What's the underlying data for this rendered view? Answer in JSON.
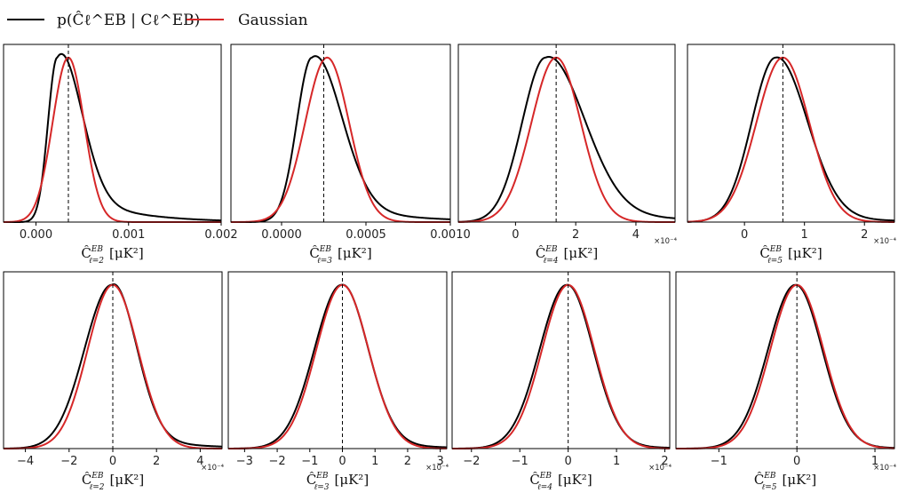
{
  "legend": [
    {
      "label": "p(Ĉℓ^EB | Cℓ^EB)",
      "color": "#000000"
    },
    {
      "label": "Gaussian",
      "color": "#d62728"
    }
  ],
  "chart_data": [
    {
      "type": "line",
      "row": "top",
      "title": "",
      "xlabel_prefix": "Ĉ",
      "xlabel_sup": "EB",
      "xlabel_sub": "ℓ=2",
      "xlabel_unit": "[μK²]",
      "multiplier": "",
      "xlim": [
        -0.00035,
        0.002
      ],
      "ticks": [
        0,
        0.001,
        0.002
      ],
      "tick_labels": [
        "0.000",
        "0.001",
        "0.002"
      ],
      "vline": 0.00035,
      "series": [
        {
          "name": "p(Ĉℓ^EB | Cℓ^EB)",
          "color": "#000000",
          "form": "skew",
          "mode": 0.00023,
          "left_width": 0.0001,
          "right_width": 0.00025,
          "tail": 0.25
        },
        {
          "name": "Gaussian",
          "color": "#d62728",
          "form": "gauss",
          "mean": 0.00035,
          "sd": 0.00017
        }
      ]
    },
    {
      "type": "line",
      "row": "top",
      "title": "",
      "xlabel_prefix": "Ĉ",
      "xlabel_sup": "EB",
      "xlabel_sub": "ℓ=3",
      "xlabel_unit": "[μK²]",
      "multiplier": "",
      "xlim": [
        -0.0003,
        0.001
      ],
      "ticks": [
        0,
        0.0005,
        0.001
      ],
      "tick_labels": [
        "0.0000",
        "0.0005",
        "0.0010"
      ],
      "vline": 0.00025,
      "series": [
        {
          "name": "p(Ĉℓ^EB | Cℓ^EB)",
          "color": "#000000",
          "form": "skew",
          "mode": 0.00018,
          "left_width": 9e-05,
          "right_width": 0.00017,
          "tail": 0.15
        },
        {
          "name": "Gaussian",
          "color": "#d62728",
          "form": "gauss",
          "mean": 0.00027,
          "sd": 0.00013
        }
      ]
    },
    {
      "type": "line",
      "row": "top",
      "title": "",
      "xlabel_prefix": "Ĉ",
      "xlabel_sup": "EB",
      "xlabel_sub": "ℓ=4",
      "xlabel_unit": "[μK²]",
      "multiplier": "×10⁻⁴",
      "xlim": [
        -1.9,
        5.3
      ],
      "ticks": [
        0,
        2,
        4
      ],
      "tick_labels": [
        "0",
        "2",
        "4"
      ],
      "vline": 1.35,
      "series": [
        {
          "name": "p(Ĉℓ^EB | Cℓ^EB)",
          "color": "#000000",
          "form": "skew",
          "mode": 1.0,
          "left_width": 0.78,
          "right_width": 1.25,
          "tail": 0.1
        },
        {
          "name": "Gaussian",
          "color": "#d62728",
          "form": "gauss",
          "mean": 1.35,
          "sd": 0.82
        }
      ]
    },
    {
      "type": "line",
      "row": "top",
      "title": "",
      "xlabel_prefix": "Ĉ",
      "xlabel_sup": "EB",
      "xlabel_sub": "ℓ=5",
      "xlabel_unit": "[μK²]",
      "multiplier": "×10⁻⁴",
      "xlim": [
        -0.95,
        2.5
      ],
      "ticks": [
        0,
        1,
        2
      ],
      "tick_labels": [
        "0",
        "1",
        "2"
      ],
      "vline": 0.64,
      "series": [
        {
          "name": "p(Ĉℓ^EB | Cℓ^EB)",
          "color": "#000000",
          "form": "skew",
          "mode": 0.52,
          "left_width": 0.4,
          "right_width": 0.52,
          "tail": 0.05
        },
        {
          "name": "Gaussian",
          "color": "#d62728",
          "form": "gauss",
          "mean": 0.64,
          "sd": 0.44
        }
      ]
    },
    {
      "type": "line",
      "row": "bottom",
      "title": "",
      "xlabel_prefix": "Ĉ",
      "xlabel_sup": "EB",
      "xlabel_sub": "ℓ=2",
      "xlabel_unit": "[μK²]",
      "multiplier": "×10⁻⁴",
      "xlim": [
        -5,
        5
      ],
      "ticks": [
        -4,
        -2,
        0,
        2,
        4
      ],
      "tick_labels": [
        "−4",
        "−2",
        "0",
        "2",
        "4"
      ],
      "vline": 0,
      "series": [
        {
          "name": "p(Ĉℓ^EB | Cℓ^EB)",
          "color": "#000000",
          "form": "skew",
          "mode": -0.05,
          "left_width": 1.25,
          "right_width": 1.1,
          "tail": 0.1
        },
        {
          "name": "Gaussian",
          "color": "#d62728",
          "form": "gauss",
          "mean": 0,
          "sd": 1.15
        }
      ]
    },
    {
      "type": "line",
      "row": "bottom",
      "title": "",
      "xlabel_prefix": "Ĉ",
      "xlabel_sup": "EB",
      "xlabel_sub": "ℓ=3",
      "xlabel_unit": "[μK²]",
      "multiplier": "×10⁻⁴",
      "xlim": [
        -3.5,
        3.2
      ],
      "ticks": [
        -3,
        -2,
        -1,
        0,
        1,
        2,
        3
      ],
      "tick_labels": [
        "−3",
        "−2",
        "−1",
        "0",
        "1",
        "2",
        "3"
      ],
      "vline": 0,
      "series": [
        {
          "name": "p(Ĉℓ^EB | Cℓ^EB)",
          "color": "#000000",
          "form": "skew",
          "mode": -0.03,
          "left_width": 0.83,
          "right_width": 0.8,
          "tail": 0.05
        },
        {
          "name": "Gaussian",
          "color": "#d62728",
          "form": "gauss",
          "mean": 0,
          "sd": 0.8
        }
      ]
    },
    {
      "type": "line",
      "row": "bottom",
      "title": "",
      "xlabel_prefix": "Ĉ",
      "xlabel_sup": "EB",
      "xlabel_sub": "ℓ=4",
      "xlabel_unit": "[μK²]",
      "multiplier": "×10⁻⁴",
      "xlim": [
        -2.4,
        2.1
      ],
      "ticks": [
        -2,
        -1,
        0,
        1,
        2
      ],
      "tick_labels": [
        "−2",
        "−1",
        "0",
        "1",
        "2"
      ],
      "vline": 0,
      "series": [
        {
          "name": "p(Ĉℓ^EB | Cℓ^EB)",
          "color": "#000000",
          "form": "skew",
          "mode": -0.03,
          "left_width": 0.56,
          "right_width": 0.54,
          "tail": 0.03
        },
        {
          "name": "Gaussian",
          "color": "#d62728",
          "form": "gauss",
          "mean": 0,
          "sd": 0.54
        }
      ]
    },
    {
      "type": "line",
      "row": "bottom",
      "title": "",
      "xlabel_prefix": "Ĉ",
      "xlabel_sup": "EB",
      "xlabel_sub": "ℓ=5",
      "xlabel_unit": "[μK²]",
      "multiplier": "×10⁻⁴",
      "xlim": [
        -1.55,
        1.25
      ],
      "ticks": [
        -1,
        0,
        1
      ],
      "tick_labels": [
        "−1",
        "0",
        "1"
      ],
      "vline": 0,
      "series": [
        {
          "name": "p(Ĉℓ^EB | Cℓ^EB)",
          "color": "#000000",
          "form": "skew",
          "mode": -0.02,
          "left_width": 0.35,
          "right_width": 0.34,
          "tail": 0.02
        },
        {
          "name": "Gaussian",
          "color": "#d62728",
          "form": "gauss",
          "mean": 0,
          "sd": 0.34
        }
      ]
    }
  ]
}
